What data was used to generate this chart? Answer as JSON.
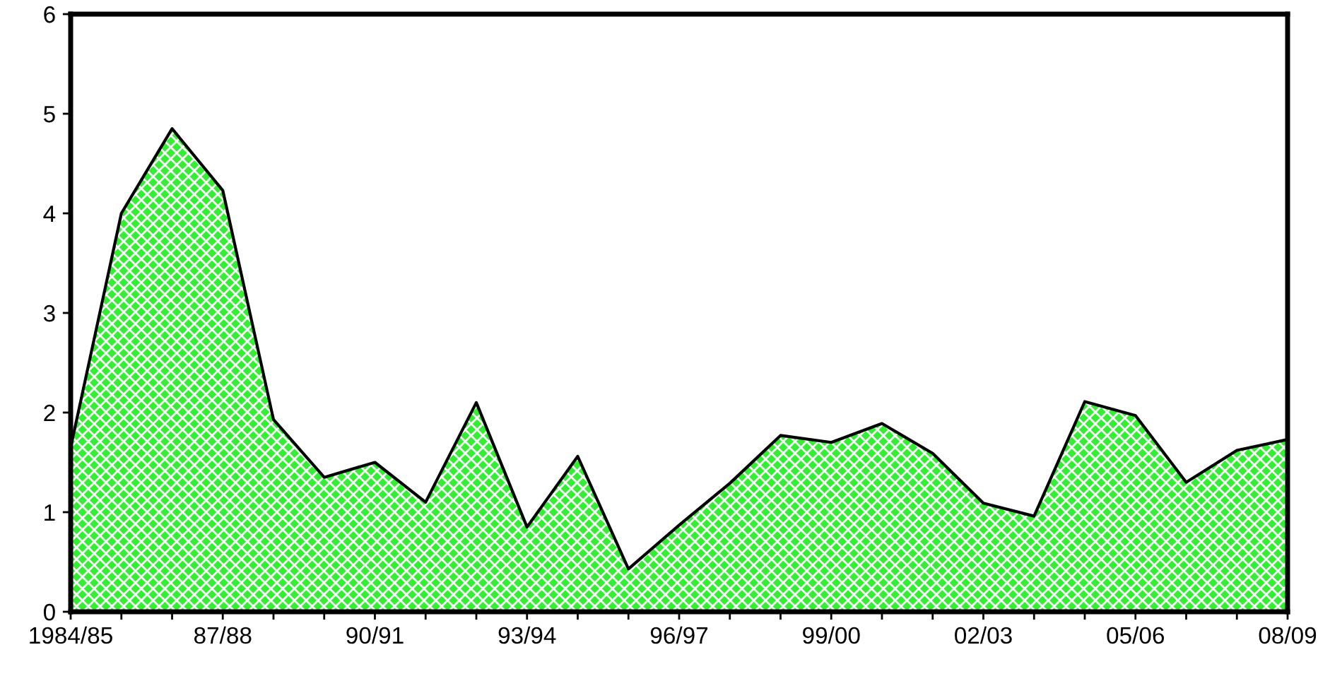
{
  "chart_data": {
    "type": "area",
    "categories": [
      "1984/85",
      null,
      null,
      "87/88",
      null,
      null,
      "90/91",
      null,
      null,
      "93/94",
      null,
      null,
      "96/97",
      null,
      null,
      "99/00",
      null,
      null,
      "02/03",
      null,
      null,
      "05/06",
      null,
      null,
      "08/09"
    ],
    "series": [
      {
        "color": "#33ee33",
        "values": [
          1.65,
          4.0,
          4.85,
          4.23,
          1.93,
          1.35,
          1.5,
          1.1,
          2.1,
          0.85,
          1.56,
          0.43,
          0.87,
          1.29,
          1.77,
          1.7,
          1.89,
          1.59,
          1.09,
          0.96,
          2.11,
          1.97,
          1.3,
          1.62,
          1.73
        ]
      }
    ],
    "ylim": [
      0,
      6
    ],
    "yticks": [
      0,
      1,
      2,
      3,
      4,
      5,
      6
    ],
    "grid": false,
    "legend": false
  }
}
